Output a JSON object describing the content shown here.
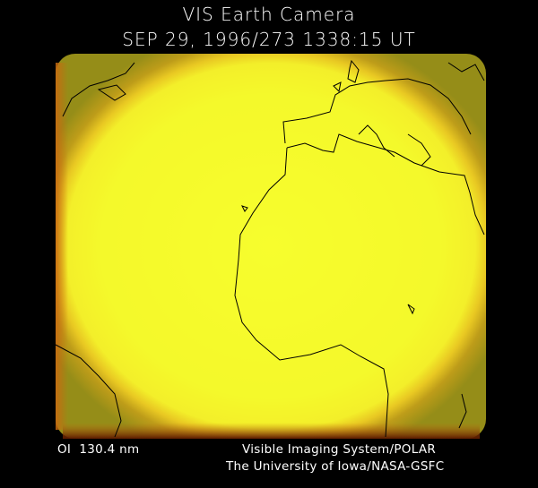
{
  "header": {
    "title": "VIS Earth Camera",
    "timestamp": "SEP 29, 1996/273 1338:15 UT"
  },
  "footer": {
    "filter": "OI  130.4 nm",
    "credit_line1": "Visible Imaging System/POLAR",
    "credit_line2": "The University of Iowa/NASA-GSFC"
  }
}
